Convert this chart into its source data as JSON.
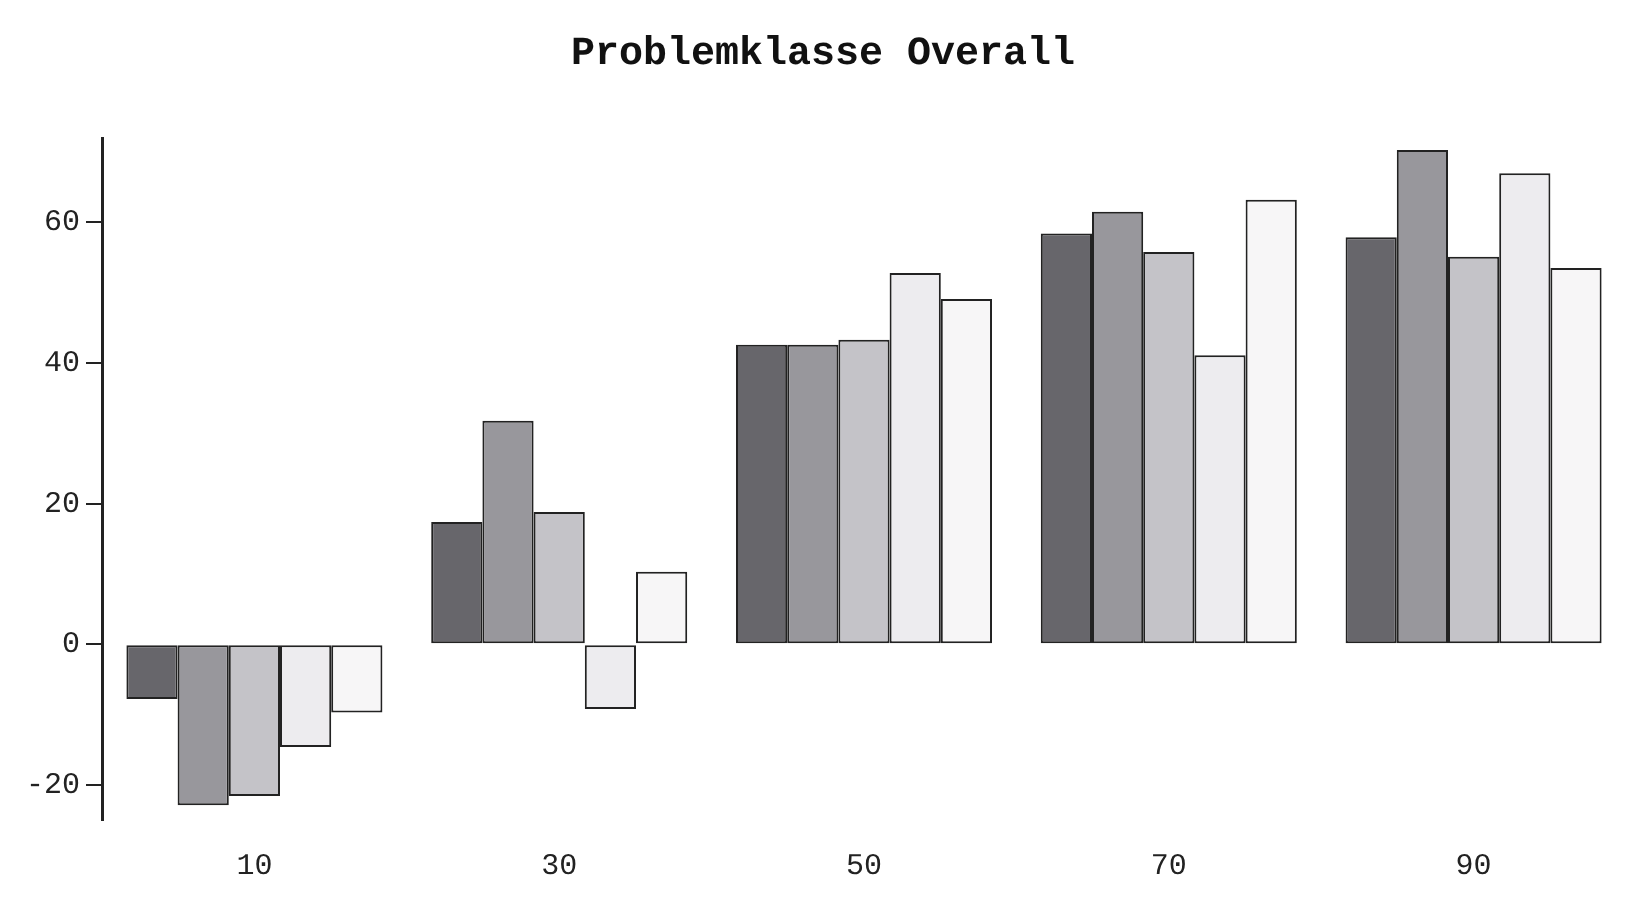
{
  "chart_data": {
    "type": "bar",
    "title": "Problemklasse Overall",
    "categories": [
      "10",
      "30",
      "50",
      "70",
      "90"
    ],
    "series": [
      {
        "color": "#67666b",
        "values": [
          -7.8,
          17.4,
          42.6,
          58.4,
          57.9
        ]
      },
      {
        "color": "#98979c",
        "values": [
          -22.9,
          31.8,
          42.6,
          61.5,
          70.3
        ]
      },
      {
        "color": "#c4c3c8",
        "values": [
          -21.6,
          18.8,
          43.3,
          55.8,
          55.1
        ]
      },
      {
        "color": "#edecef",
        "values": [
          -14.6,
          -9.2,
          52.8,
          41.1,
          67.0
        ]
      },
      {
        "color": "#f7f6f7",
        "values": [
          -9.7,
          10.3,
          49.1,
          63.2,
          53.5
        ]
      }
    ],
    "ylim": [
      -25,
      72
    ],
    "yticks": [
      -20,
      0,
      20,
      40,
      60
    ],
    "grid": false,
    "legend": false
  }
}
